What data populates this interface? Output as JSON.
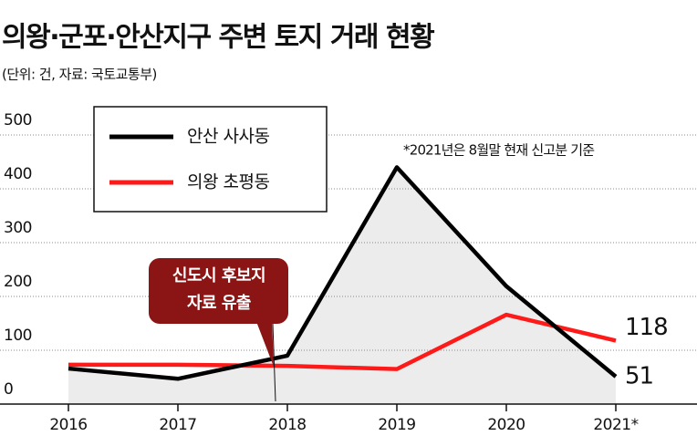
{
  "chart_data": {
    "type": "line",
    "title": "의왕·군포·안산지구 주변 토지 거래 현황",
    "subtitle": "(단위: 건, 자료: 국토교통부)",
    "note": "*2021년은 8월말 현재 신고분 기준",
    "annotation": [
      "신도시 후보지",
      "자료 유출"
    ],
    "categories": [
      "2016",
      "2017",
      "2018",
      "2019",
      "2020",
      "2021*"
    ],
    "series": [
      {
        "name": "안산 사사동",
        "color": "#000000",
        "values": [
          66,
          47,
          90,
          440,
          219,
          51
        ]
      },
      {
        "name": "의왕 초평동",
        "color": "#ff1a1a",
        "values": [
          73,
          73,
          71,
          65,
          166,
          118
        ]
      }
    ],
    "ylim": [
      0,
      500
    ],
    "yticks": [
      0,
      100,
      200,
      300,
      400,
      500
    ],
    "grid": true,
    "legend": "upper left"
  }
}
